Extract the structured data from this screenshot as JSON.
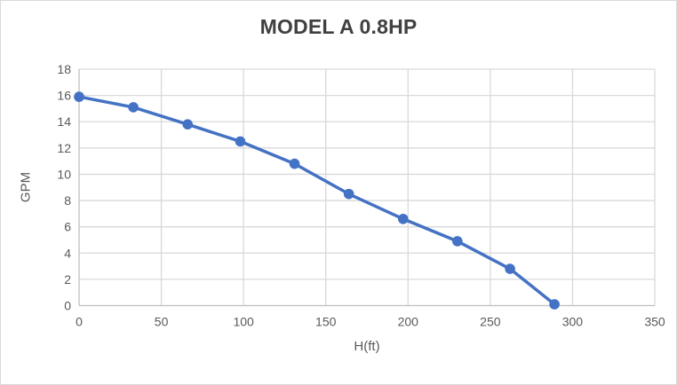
{
  "chart_data": {
    "type": "line",
    "title": "MODEL A 0.8HP",
    "xlabel": "H(ft)",
    "ylabel": "GPM",
    "x": [
      0,
      33,
      66,
      98,
      131,
      164,
      197,
      230,
      262,
      289
    ],
    "series": [
      {
        "values": [
          15.9,
          15.1,
          13.8,
          12.5,
          10.8,
          8.5,
          6.6,
          4.9,
          2.8,
          0.1
        ]
      }
    ],
    "xlim": [
      0,
      350
    ],
    "ylim": [
      0,
      18
    ],
    "x_ticks": [
      0,
      50,
      100,
      150,
      200,
      250,
      300,
      350
    ],
    "y_ticks": [
      0,
      2,
      4,
      6,
      8,
      10,
      12,
      14,
      16,
      18
    ],
    "grid": true,
    "legend": false,
    "colors": {
      "line": "#4472C4",
      "marker": "#4472C4",
      "grid": "#D9D9D9",
      "axis": "#BFBFBF",
      "tick_label": "#595959",
      "axis_title": "#595959",
      "title": "#404040",
      "background": "#FFFFFF",
      "border": "#D9D9D9"
    }
  }
}
